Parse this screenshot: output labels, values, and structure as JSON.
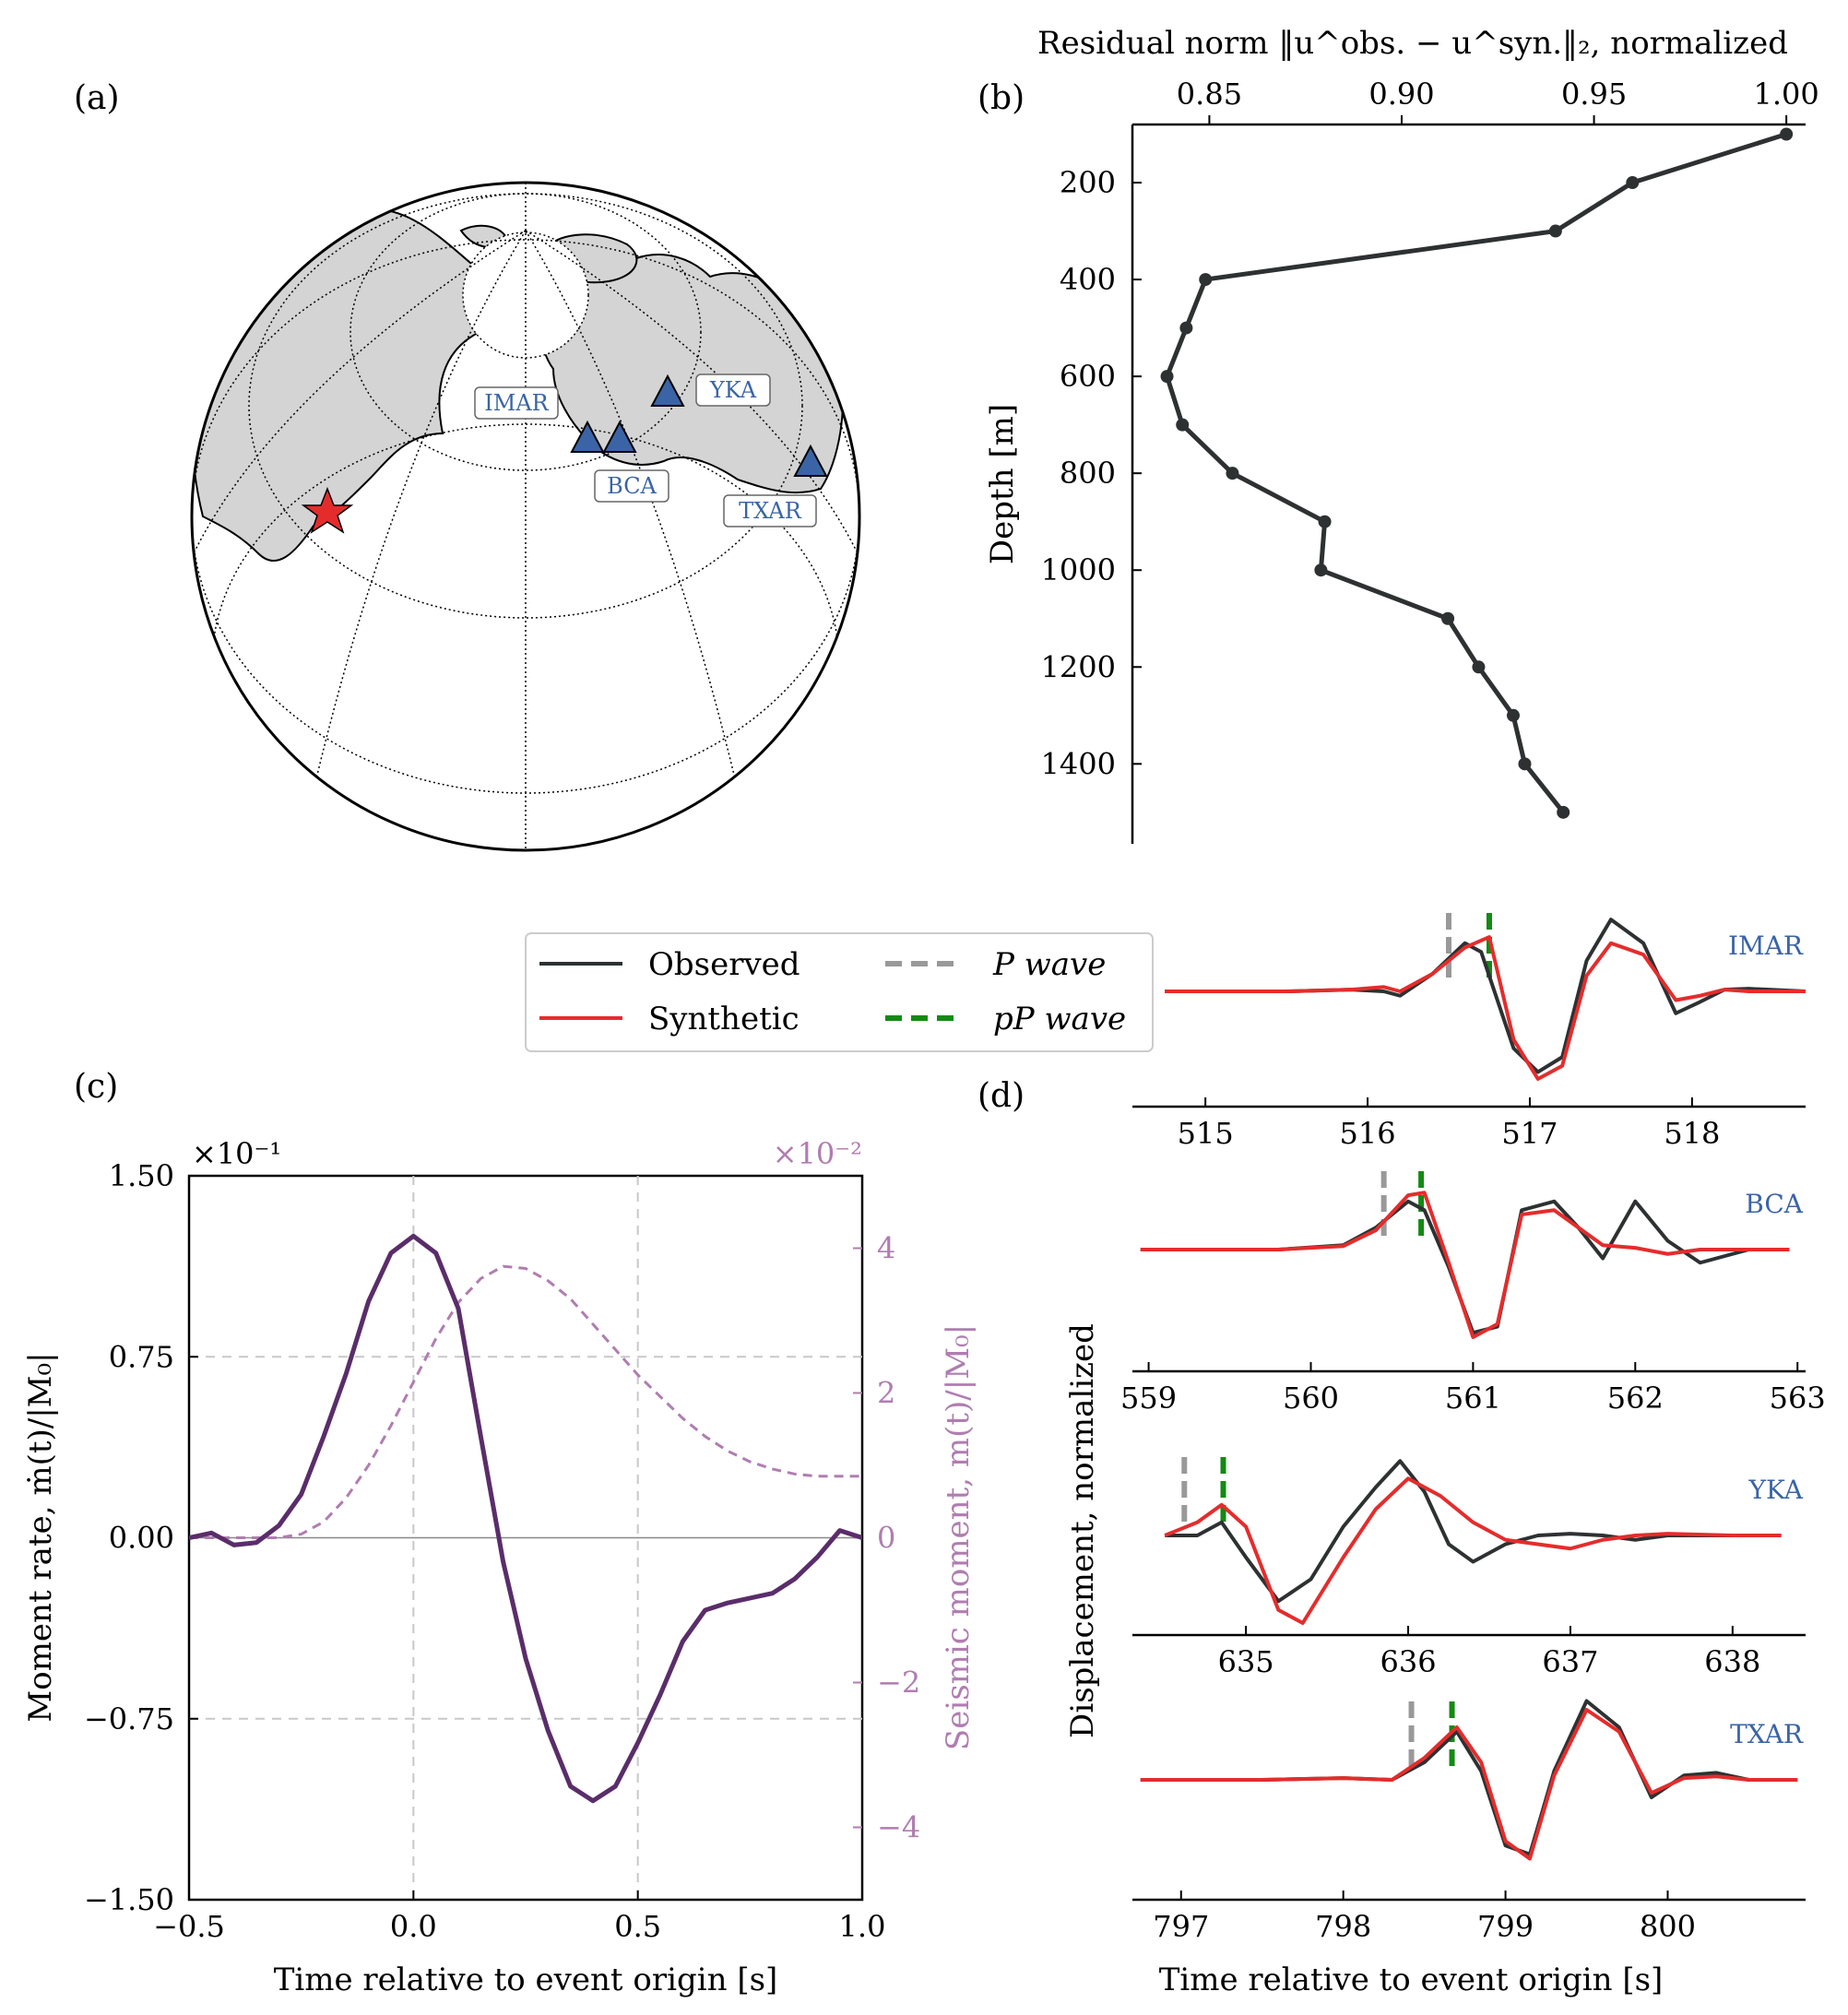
{
  "panels": {
    "a": {
      "label": "(a)",
      "stations": [
        {
          "name": "IMAR",
          "color": "#3a64a6"
        },
        {
          "name": "BCA",
          "color": "#3a64a6"
        },
        {
          "name": "YKA",
          "color": "#3a64a6"
        },
        {
          "name": "TXAR",
          "color": "#3a64a6"
        }
      ],
      "event_marker": "red-star-icon",
      "land_color": "#d4d4d4"
    },
    "b": {
      "label": "(b)"
    },
    "c": {
      "label": "(c)"
    },
    "d": {
      "label": "(d)"
    }
  },
  "legend": {
    "observed": "Observed",
    "synthetic": "Synthetic",
    "p_wave": "P wave",
    "pp_wave": "pP wave"
  },
  "colors": {
    "observed": "#2e3132",
    "synthetic": "#e52c2c",
    "p_wave": "#999999",
    "pp_wave": "#138a13",
    "moment_rate": "#5a2d6a",
    "moment": "#b07db0",
    "station": "#3a64a6"
  },
  "chart_data": [
    {
      "id": "b",
      "type": "line",
      "xlabel": "Residual norm ‖u^obs. − u^syn.‖₂, normalized",
      "ylabel": "Depth [m]",
      "x_axis_position": "top",
      "y_inverted": true,
      "xlim": [
        0.83,
        1.005
      ],
      "ylim": [
        1565,
        80
      ],
      "xticks": [
        "0.85",
        "0.90",
        "0.95",
        "1.00"
      ],
      "xtick_values": [
        0.85,
        0.9,
        0.95,
        1.0
      ],
      "yticks": [
        "200",
        "400",
        "600",
        "800",
        "1000",
        "1200",
        "1400"
      ],
      "ytick_values": [
        200,
        400,
        600,
        800,
        1000,
        1200,
        1400
      ],
      "series": [
        {
          "depth": [
            100,
            200,
            300,
            400,
            500,
            600,
            700,
            800,
            900,
            1000,
            1100,
            1200,
            1300,
            1400,
            1500
          ],
          "residual": [
            1.0,
            0.96,
            0.94,
            0.849,
            0.844,
            0.839,
            0.843,
            0.856,
            0.88,
            0.879,
            0.912,
            0.92,
            0.929,
            0.932,
            0.942
          ]
        }
      ]
    },
    {
      "id": "c",
      "type": "line",
      "xlabel": "Time relative to event origin [s]",
      "ylabel_left": "Moment rate, ṁ(t)/|M₀|",
      "ylabel_right": "Seismic moment, m(t)/|M₀|",
      "left_multiplier": "×10⁻¹",
      "right_multiplier": "×10⁻²",
      "xlim": [
        -0.5,
        1.0
      ],
      "ylim_left": [
        -1.5,
        1.5
      ],
      "ylim_right": [
        -5,
        5
      ],
      "xticks": [
        "−0.5",
        "0.0",
        "0.5",
        "1.0"
      ],
      "xtick_values": [
        -0.5,
        0.0,
        0.5,
        1.0
      ],
      "yticks_left": [
        "−1.50",
        "−0.75",
        "0.00",
        "0.75",
        "1.50"
      ],
      "ytick_left_values": [
        -1.5,
        -0.75,
        0.0,
        0.75,
        1.5
      ],
      "yticks_right": [
        "−4",
        "−2",
        "0",
        "2",
        "4"
      ],
      "ytick_right_values": [
        -4,
        -2,
        0,
        2,
        4
      ],
      "grid": "dashed",
      "series": [
        {
          "axis": "left",
          "style": "solid",
          "x": [
            -0.5,
            -0.45,
            -0.4,
            -0.35,
            -0.3,
            -0.25,
            -0.2,
            -0.15,
            -0.1,
            -0.05,
            0.0,
            0.05,
            0.1,
            0.15,
            0.2,
            0.25,
            0.3,
            0.35,
            0.4,
            0.45,
            0.5,
            0.55,
            0.6,
            0.65,
            0.7,
            0.75,
            0.8,
            0.85,
            0.9,
            0.95,
            1.0
          ],
          "y": [
            0.0,
            0.02,
            -0.03,
            -0.02,
            0.05,
            0.18,
            0.42,
            0.68,
            0.98,
            1.18,
            1.25,
            1.18,
            0.95,
            0.42,
            -0.1,
            -0.5,
            -0.8,
            -1.03,
            -1.09,
            -1.03,
            -0.85,
            -0.65,
            -0.43,
            -0.3,
            -0.27,
            -0.25,
            -0.23,
            -0.17,
            -0.08,
            0.03,
            0.0
          ]
        },
        {
          "axis": "right",
          "style": "dashed",
          "x": [
            -0.5,
            -0.4,
            -0.3,
            -0.25,
            -0.2,
            -0.15,
            -0.1,
            -0.05,
            0.0,
            0.05,
            0.1,
            0.15,
            0.2,
            0.25,
            0.3,
            0.35,
            0.4,
            0.45,
            0.5,
            0.55,
            0.6,
            0.65,
            0.7,
            0.75,
            0.8,
            0.85,
            0.9,
            0.95,
            1.0
          ],
          "y": [
            0.0,
            0.0,
            0.0,
            0.05,
            0.22,
            0.55,
            1.0,
            1.55,
            2.15,
            2.75,
            3.25,
            3.58,
            3.75,
            3.72,
            3.55,
            3.3,
            2.95,
            2.6,
            2.25,
            1.95,
            1.65,
            1.4,
            1.2,
            1.05,
            0.95,
            0.88,
            0.85,
            0.85,
            0.85
          ]
        }
      ]
    },
    {
      "id": "d",
      "type": "line",
      "xlabel": "Time relative to event origin [s]",
      "ylabel": "Displacement, normalized",
      "stations": [
        {
          "name": "IMAR",
          "xlim": [
            514.55,
            518.7
          ],
          "xticks": [
            "515",
            "516",
            "517",
            "518"
          ],
          "xtick_values": [
            515,
            516,
            517,
            518
          ],
          "p": 516.5,
          "pP": 516.75,
          "observed": {
            "x": [
              514.75,
              515.5,
              515.9,
              516.1,
              516.2,
              516.4,
              516.6,
              516.7,
              516.9,
              517.05,
              517.2,
              517.35,
              517.5,
              517.7,
              517.9,
              518.05,
              518.2,
              518.35,
              518.7
            ],
            "y": [
              0.0,
              0.0,
              0.02,
              0.0,
              -0.05,
              0.2,
              0.55,
              0.45,
              -0.65,
              -0.92,
              -0.75,
              0.35,
              0.82,
              0.55,
              -0.25,
              -0.12,
              0.02,
              0.03,
              0.0
            ]
          },
          "synthetic": {
            "x": [
              514.75,
              515.5,
              515.9,
              516.1,
              516.2,
              516.4,
              516.6,
              516.75,
              516.9,
              517.05,
              517.2,
              517.35,
              517.5,
              517.7,
              517.9,
              518.05,
              518.2,
              518.35,
              518.7
            ],
            "y": [
              0.0,
              0.0,
              0.02,
              0.05,
              0.0,
              0.2,
              0.5,
              0.62,
              -0.55,
              -1.0,
              -0.85,
              0.18,
              0.55,
              0.42,
              -0.1,
              -0.05,
              0.02,
              0.0,
              0.0
            ]
          }
        },
        {
          "name": "BCA",
          "xlim": [
            558.9,
            563.05
          ],
          "xticks": [
            "559",
            "560",
            "561",
            "562",
            "563"
          ],
          "xtick_values": [
            559,
            560,
            561,
            562,
            563
          ],
          "p": 560.45,
          "pP": 560.68,
          "observed": {
            "x": [
              558.95,
              559.8,
              560.2,
              560.4,
              560.6,
              560.7,
              560.85,
              561.0,
              561.15,
              561.3,
              561.5,
              561.65,
              561.8,
              562.0,
              562.2,
              562.4,
              562.7,
              562.95
            ],
            "y": [
              0.0,
              0.0,
              0.05,
              0.25,
              0.55,
              0.45,
              -0.2,
              -0.95,
              -0.88,
              0.45,
              0.55,
              0.25,
              -0.1,
              0.55,
              0.1,
              -0.15,
              0.0,
              0.0
            ]
          },
          "synthetic": {
            "x": [
              558.95,
              559.8,
              560.2,
              560.4,
              560.6,
              560.7,
              560.85,
              561.0,
              561.15,
              561.3,
              561.5,
              561.65,
              561.8,
              562.0,
              562.2,
              562.4,
              562.7,
              562.95
            ],
            "y": [
              0.0,
              0.0,
              0.04,
              0.22,
              0.62,
              0.65,
              -0.15,
              -1.0,
              -0.85,
              0.4,
              0.45,
              0.25,
              0.05,
              0.02,
              -0.05,
              0.0,
              0.0,
              0.0
            ]
          }
        },
        {
          "name": "YKA",
          "xlim": [
            634.3,
            638.45
          ],
          "xticks": [
            "635",
            "636",
            "637",
            "638"
          ],
          "xtick_values": [
            635,
            636,
            637,
            638
          ],
          "p": 634.62,
          "pP": 634.86,
          "observed": {
            "x": [
              634.5,
              634.7,
              634.85,
              635.0,
              635.2,
              635.4,
              635.6,
              635.8,
              635.95,
              636.1,
              636.25,
              636.4,
              636.6,
              636.8,
              637.0,
              637.2,
              637.4,
              637.6,
              638.0,
              638.3
            ],
            "y": [
              0.0,
              0.0,
              0.15,
              -0.25,
              -0.75,
              -0.5,
              0.1,
              0.55,
              0.85,
              0.5,
              -0.1,
              -0.3,
              -0.1,
              0.0,
              0.02,
              0.0,
              -0.05,
              0.0,
              0.0,
              0.0
            ]
          },
          "synthetic": {
            "x": [
              634.5,
              634.7,
              634.85,
              635.0,
              635.2,
              635.35,
              635.6,
              635.8,
              636.0,
              636.2,
              636.4,
              636.6,
              636.8,
              637.0,
              637.2,
              637.4,
              637.6,
              638.0,
              638.3
            ],
            "y": [
              0.0,
              0.15,
              0.35,
              0.1,
              -0.85,
              -1.0,
              -0.25,
              0.3,
              0.65,
              0.45,
              0.15,
              -0.05,
              -0.1,
              -0.15,
              -0.05,
              0.0,
              0.02,
              0.0,
              0.0
            ]
          }
        },
        {
          "name": "TXAR",
          "xlim": [
            796.7,
            800.85
          ],
          "xticks": [
            "797",
            "798",
            "799",
            "800"
          ],
          "xtick_values": [
            797,
            798,
            799,
            800
          ],
          "p": 798.42,
          "pP": 798.67,
          "observed": {
            "x": [
              796.75,
              797.5,
              798.0,
              798.3,
              798.5,
              798.7,
              798.85,
              799.0,
              799.15,
              799.3,
              799.5,
              799.7,
              799.9,
              800.1,
              800.3,
              800.5,
              800.8
            ],
            "y": [
              0.0,
              0.0,
              0.02,
              0.0,
              0.2,
              0.55,
              0.1,
              -0.75,
              -0.85,
              0.1,
              0.9,
              0.6,
              -0.2,
              0.05,
              0.08,
              0.0,
              0.0
            ]
          },
          "synthetic": {
            "x": [
              796.75,
              797.5,
              798.0,
              798.3,
              798.5,
              798.7,
              798.85,
              799.0,
              799.15,
              799.3,
              799.5,
              799.7,
              799.9,
              800.1,
              800.3,
              800.5,
              800.8
            ],
            "y": [
              0.0,
              0.0,
              0.02,
              0.0,
              0.25,
              0.6,
              0.2,
              -0.7,
              -0.9,
              0.05,
              0.8,
              0.55,
              -0.15,
              0.02,
              0.04,
              0.0,
              0.0
            ]
          }
        }
      ]
    }
  ]
}
